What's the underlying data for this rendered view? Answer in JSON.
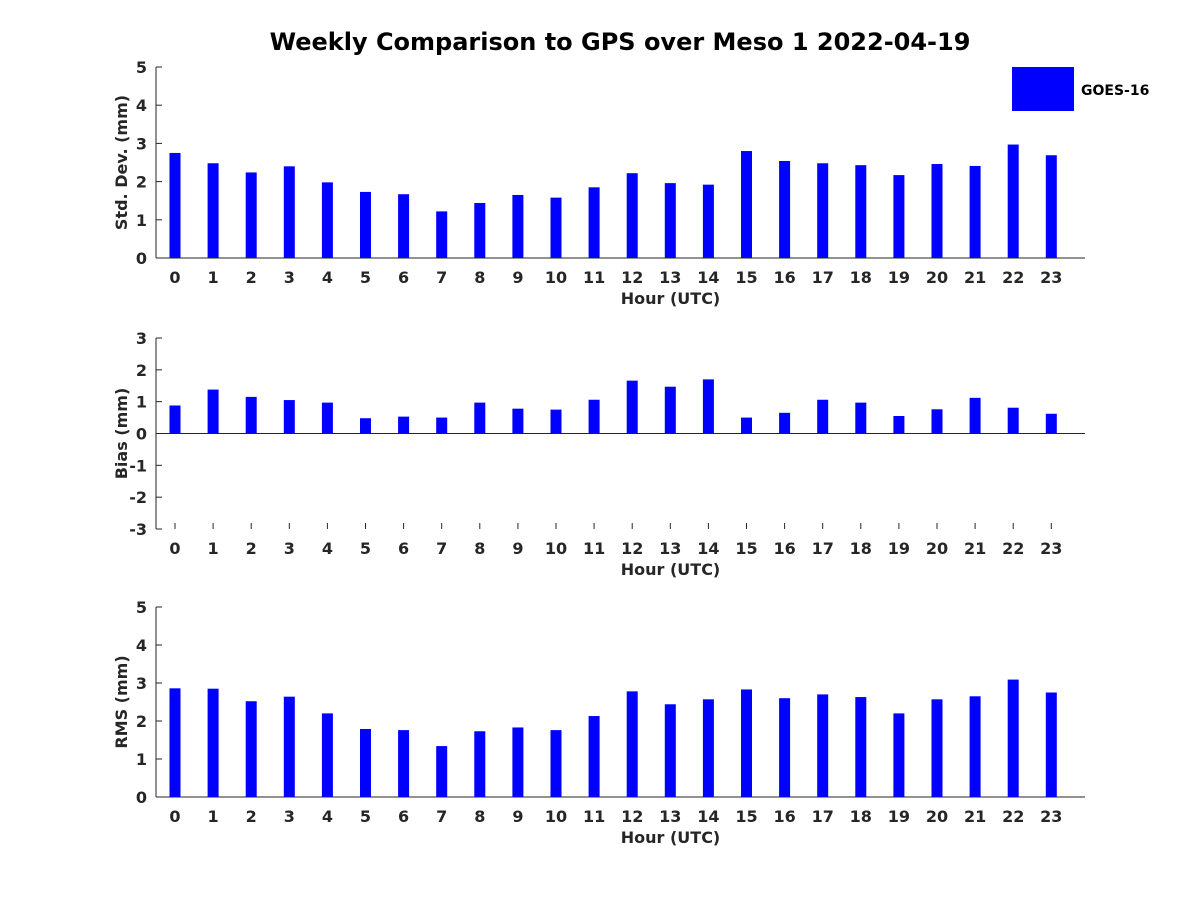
{
  "title": "Weekly Comparison to GPS over Meso 1 2022-04-19",
  "colors": {
    "bar": "#0000ff",
    "axis": "#262626"
  },
  "legend": {
    "label": "GOES-16",
    "location": "top-right"
  },
  "chart_data": [
    {
      "type": "bar",
      "name": "std",
      "xlabel": "Hour (UTC)",
      "ylabel": "Std. Dev. (mm)",
      "ylim": [
        0,
        5
      ],
      "yticks": [
        0,
        1,
        2,
        3,
        4,
        5
      ],
      "categories": [
        "0",
        "1",
        "2",
        "3",
        "4",
        "5",
        "6",
        "7",
        "8",
        "9",
        "10",
        "11",
        "12",
        "13",
        "14",
        "15",
        "16",
        "17",
        "18",
        "19",
        "20",
        "21",
        "22",
        "23"
      ],
      "series": [
        {
          "name": "GOES-16",
          "values": [
            2.75,
            2.48,
            2.24,
            2.4,
            1.98,
            1.73,
            1.67,
            1.22,
            1.44,
            1.65,
            1.58,
            1.85,
            2.22,
            1.96,
            1.92,
            2.8,
            2.54,
            2.48,
            2.43,
            2.17,
            2.46,
            2.41,
            2.97,
            2.69
          ]
        }
      ]
    },
    {
      "type": "bar",
      "name": "bias",
      "xlabel": "Hour (UTC)",
      "ylabel": "Bias (mm)",
      "ylim": [
        -3,
        3
      ],
      "yticks": [
        -3,
        -2,
        -1,
        0,
        1,
        2,
        3
      ],
      "categories": [
        "0",
        "1",
        "2",
        "3",
        "4",
        "5",
        "6",
        "7",
        "8",
        "9",
        "10",
        "11",
        "12",
        "13",
        "14",
        "15",
        "16",
        "17",
        "18",
        "19",
        "20",
        "21",
        "22",
        "23"
      ],
      "series": [
        {
          "name": "GOES-16",
          "values": [
            0.88,
            1.38,
            1.15,
            1.05,
            0.97,
            0.48,
            0.53,
            0.5,
            0.97,
            0.78,
            0.75,
            1.06,
            1.66,
            1.47,
            1.7,
            0.5,
            0.65,
            1.06,
            0.97,
            0.55,
            0.76,
            1.12,
            0.81,
            0.62
          ]
        }
      ]
    },
    {
      "type": "bar",
      "name": "rms",
      "xlabel": "Hour (UTC)",
      "ylabel": "RMS (mm)",
      "ylim": [
        0,
        5
      ],
      "yticks": [
        0,
        1,
        2,
        3,
        4,
        5
      ],
      "categories": [
        "0",
        "1",
        "2",
        "3",
        "4",
        "5",
        "6",
        "7",
        "8",
        "9",
        "10",
        "11",
        "12",
        "13",
        "14",
        "15",
        "16",
        "17",
        "18",
        "19",
        "20",
        "21",
        "22",
        "23"
      ],
      "series": [
        {
          "name": "GOES-16",
          "values": [
            2.86,
            2.85,
            2.52,
            2.64,
            2.2,
            1.79,
            1.76,
            1.34,
            1.73,
            1.83,
            1.76,
            2.13,
            2.78,
            2.44,
            2.57,
            2.83,
            2.6,
            2.7,
            2.63,
            2.2,
            2.57,
            2.65,
            3.09,
            2.75
          ]
        }
      ]
    }
  ]
}
